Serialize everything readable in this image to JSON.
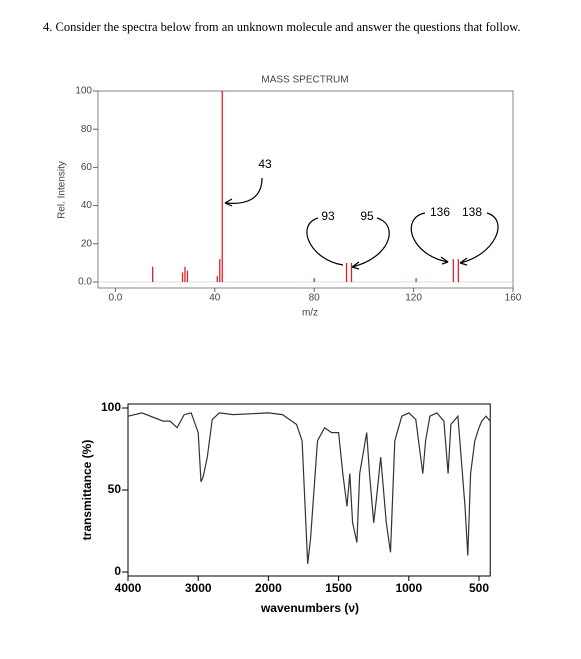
{
  "question": "4.  Consider the spectra below from an unknown molecule and answer the questions that follow.",
  "chart_data": [
    {
      "type": "bar",
      "title": "MASS SPECTRUM",
      "xlabel": "m/z",
      "ylabel": "Rel. Intensity",
      "color": "#e0202a",
      "x": [
        15,
        27,
        28,
        29,
        41,
        42,
        43,
        80,
        93,
        95,
        121,
        136,
        138
      ],
      "values": [
        8,
        5,
        8,
        6,
        3,
        12,
        100,
        2,
        10,
        10,
        2,
        12,
        12
      ],
      "xlim": [
        -7,
        160
      ],
      "xticks": [
        {
          "value": 0,
          "label": "0.0"
        },
        40,
        80,
        120,
        160
      ],
      "ylim": [
        0,
        100
      ],
      "yticks": [
        {
          "value": 0,
          "label": "0.0"
        },
        20,
        40,
        60,
        80,
        100
      ],
      "annotations": [
        "43",
        "93",
        "95",
        "136",
        "138"
      ]
    },
    {
      "type": "line",
      "xlabel": "wavenumbers (ν)",
      "ylabel": "transmittance (%)",
      "color": "#333333",
      "x": [
        4000,
        3800,
        3500,
        3400,
        3300,
        3200,
        3100,
        3000,
        2960,
        2930,
        2870,
        2800,
        2700,
        2500,
        2000,
        1900,
        1800,
        1760,
        1720,
        1700,
        1650,
        1600,
        1550,
        1500,
        1470,
        1440,
        1420,
        1400,
        1370,
        1350,
        1300,
        1280,
        1250,
        1230,
        1200,
        1160,
        1130,
        1100,
        1050,
        1000,
        950,
        900,
        880,
        850,
        800,
        750,
        720,
        700,
        650,
        600,
        580,
        560,
        530,
        500,
        480,
        450,
        420
      ],
      "values": [
        95,
        97,
        92,
        92,
        88,
        96,
        97,
        85,
        55,
        58,
        70,
        93,
        97,
        96,
        97,
        96,
        90,
        80,
        5,
        20,
        80,
        88,
        85,
        85,
        60,
        40,
        60,
        30,
        18,
        60,
        85,
        60,
        30,
        45,
        70,
        30,
        12,
        80,
        95,
        97,
        93,
        60,
        80,
        95,
        97,
        92,
        60,
        90,
        95,
        40,
        10,
        60,
        80,
        88,
        92,
        95,
        92
      ],
      "xlim": [
        4000,
        420
      ],
      "xticks": [
        4000,
        3000,
        2000,
        1500,
        1000,
        500
      ],
      "ylim": [
        0,
        100
      ],
      "yticks": [
        0,
        50,
        100
      ]
    }
  ]
}
